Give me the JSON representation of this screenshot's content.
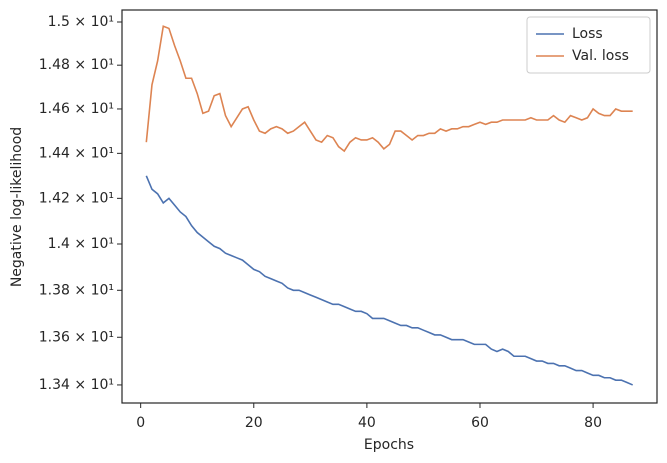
{
  "chart_data": {
    "type": "line",
    "xlabel": "Epochs",
    "ylabel": "Negative log-likelihood",
    "x": [
      1,
      2,
      3,
      4,
      5,
      6,
      7,
      8,
      9,
      10,
      11,
      12,
      13,
      14,
      15,
      16,
      17,
      18,
      19,
      20,
      21,
      22,
      23,
      24,
      25,
      26,
      27,
      28,
      29,
      30,
      31,
      32,
      33,
      34,
      35,
      36,
      37,
      38,
      39,
      40,
      41,
      42,
      43,
      44,
      45,
      46,
      47,
      48,
      49,
      50,
      51,
      52,
      53,
      54,
      55,
      56,
      57,
      58,
      59,
      60,
      61,
      62,
      63,
      64,
      65,
      66,
      67,
      68,
      69,
      70,
      71,
      72,
      73,
      74,
      75,
      76,
      77,
      78,
      79,
      80,
      81,
      82,
      83,
      84,
      85,
      86,
      87
    ],
    "series": [
      {
        "name": "Loss",
        "color": "#4c72b0",
        "values": [
          14.3,
          14.24,
          14.22,
          14.18,
          14.2,
          14.17,
          14.14,
          14.12,
          14.08,
          14.05,
          14.03,
          14.01,
          13.99,
          13.98,
          13.96,
          13.95,
          13.94,
          13.93,
          13.91,
          13.89,
          13.88,
          13.86,
          13.85,
          13.84,
          13.83,
          13.81,
          13.8,
          13.8,
          13.79,
          13.78,
          13.77,
          13.76,
          13.75,
          13.74,
          13.74,
          13.73,
          13.72,
          13.71,
          13.71,
          13.7,
          13.68,
          13.68,
          13.68,
          13.67,
          13.66,
          13.65,
          13.65,
          13.64,
          13.64,
          13.63,
          13.62,
          13.61,
          13.61,
          13.6,
          13.59,
          13.59,
          13.59,
          13.58,
          13.57,
          13.57,
          13.57,
          13.55,
          13.54,
          13.55,
          13.54,
          13.52,
          13.52,
          13.52,
          13.51,
          13.5,
          13.5,
          13.49,
          13.49,
          13.48,
          13.48,
          13.47,
          13.46,
          13.46,
          13.45,
          13.44,
          13.44,
          13.43,
          13.43,
          13.42,
          13.42,
          13.41,
          13.4
        ]
      },
      {
        "name": "Val. loss",
        "color": "#dd8452",
        "values": [
          14.45,
          14.71,
          14.82,
          14.98,
          14.97,
          14.89,
          14.82,
          14.74,
          14.74,
          14.67,
          14.58,
          14.59,
          14.66,
          14.67,
          14.57,
          14.52,
          14.56,
          14.6,
          14.61,
          14.55,
          14.5,
          14.49,
          14.51,
          14.52,
          14.51,
          14.49,
          14.5,
          14.52,
          14.54,
          14.5,
          14.46,
          14.45,
          14.48,
          14.47,
          14.43,
          14.41,
          14.45,
          14.47,
          14.46,
          14.46,
          14.47,
          14.45,
          14.42,
          14.44,
          14.5,
          14.5,
          14.48,
          14.46,
          14.48,
          14.48,
          14.49,
          14.49,
          14.51,
          14.5,
          14.51,
          14.51,
          14.52,
          14.52,
          14.53,
          14.54,
          14.53,
          14.54,
          14.54,
          14.55,
          14.55,
          14.55,
          14.55,
          14.55,
          14.56,
          14.55,
          14.55,
          14.55,
          14.57,
          14.55,
          14.54,
          14.57,
          14.56,
          14.55,
          14.56,
          14.6,
          14.58,
          14.57,
          14.57,
          14.6,
          14.59,
          14.59,
          14.59
        ]
      }
    ],
    "xlim": [
      -3.3,
      91.3
    ],
    "xticks": [
      0,
      20,
      40,
      60,
      80
    ],
    "ylim": [
      13.325,
      15.056
    ],
    "yscale": "log",
    "yticks": [
      {
        "value": 13.4,
        "label": "1.34 × 10¹"
      },
      {
        "value": 13.6,
        "label": "1.36 × 10¹"
      },
      {
        "value": 13.8,
        "label": "1.38 × 10¹"
      },
      {
        "value": 14.0,
        "label": "1.4 × 10¹"
      },
      {
        "value": 14.2,
        "label": "1.42 × 10¹"
      },
      {
        "value": 14.4,
        "label": "1.44 × 10¹"
      },
      {
        "value": 14.6,
        "label": "1.46 × 10¹"
      },
      {
        "value": 14.8,
        "label": "1.48 × 10¹"
      },
      {
        "value": 15.0,
        "label": "1.5 × 10¹"
      }
    ],
    "legend": "upper right"
  }
}
